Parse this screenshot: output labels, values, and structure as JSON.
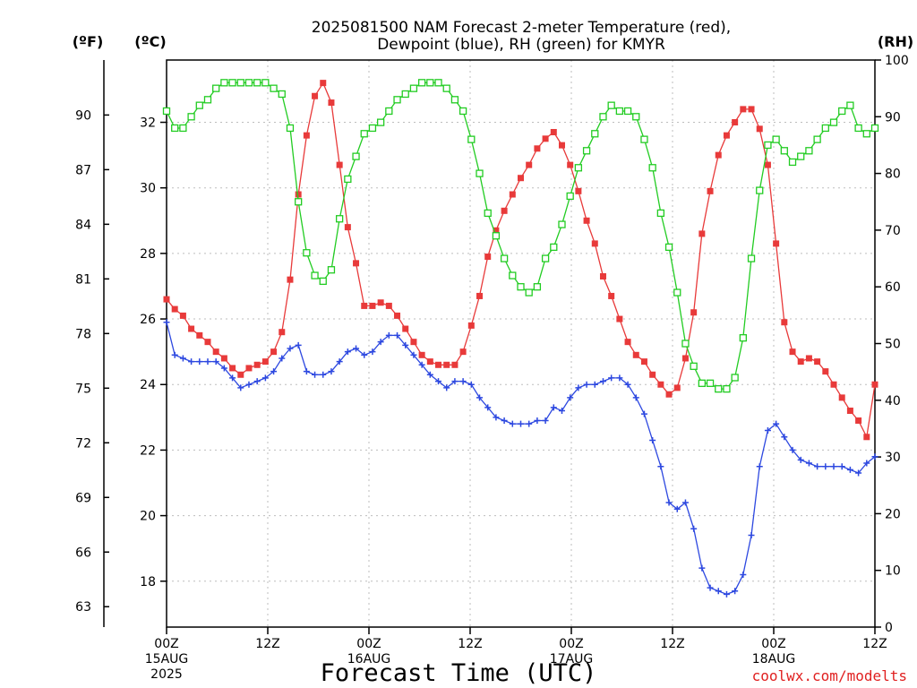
{
  "chart_data": {
    "type": "line",
    "title_line1": "2025081500 NAM Forecast 2-meter Temperature (red),",
    "title_line2": "Dewpoint (blue), RH (green) for KMYR",
    "left_unit_f": "(ºF)",
    "left_unit_c": "(ºC)",
    "right_unit": "(RH)",
    "xlabel": "Forecast Time (UTC)",
    "credit": "coolwx.com/modelts",
    "x_range_hours": [
      0,
      84
    ],
    "x_ticks": [
      {
        "h": 0,
        "l1": "00Z",
        "l2": "15AUG",
        "l3": "2025"
      },
      {
        "h": 12,
        "l1": "12Z",
        "l2": "",
        "l3": ""
      },
      {
        "h": 24,
        "l1": "00Z",
        "l2": "16AUG",
        "l3": ""
      },
      {
        "h": 36,
        "l1": "12Z",
        "l2": "",
        "l3": ""
      },
      {
        "h": 48,
        "l1": "00Z",
        "l2": "17AUG",
        "l3": ""
      },
      {
        "h": 60,
        "l1": "12Z",
        "l2": "",
        "l3": ""
      },
      {
        "h": 72,
        "l1": "00Z",
        "l2": "18AUG",
        "l3": ""
      },
      {
        "h": 84,
        "l1": "12Z",
        "l2": "",
        "l3": ""
      }
    ],
    "celsius_ticks": [
      18,
      20,
      22,
      24,
      26,
      28,
      30,
      32
    ],
    "fahrenheit_ticks": [
      63,
      66,
      69,
      72,
      75,
      78,
      81,
      84,
      87,
      90
    ],
    "rh_ticks": [
      0,
      10,
      20,
      30,
      40,
      50,
      60,
      70,
      80,
      90,
      100
    ],
    "ylim_c": [
      16.6,
      33.9
    ],
    "ylim_rh": [
      0,
      100
    ],
    "colors": {
      "temperature": "#e83a3a",
      "dewpoint": "#2d48e0",
      "rh": "#22cc22"
    },
    "series": [
      {
        "name": "Temperature",
        "units": "C",
        "values": [
          26.6,
          26.3,
          26.1,
          25.7,
          25.5,
          25.3,
          25.0,
          24.8,
          24.5,
          24.3,
          24.5,
          24.6,
          24.7,
          25.0,
          25.6,
          27.2,
          29.8,
          31.6,
          32.8,
          33.2,
          32.6,
          30.7,
          28.8,
          27.7,
          26.4,
          26.4,
          26.5,
          26.4,
          26.1,
          25.7,
          25.3,
          24.9,
          24.7,
          24.6,
          24.6,
          24.6,
          25.0,
          25.8,
          26.7,
          27.9,
          28.7,
          29.3,
          29.8,
          30.3,
          30.7,
          31.2,
          31.5,
          31.7,
          31.3,
          30.7,
          29.9,
          29.0,
          28.3,
          27.3,
          26.7,
          26.0,
          25.3,
          24.9,
          24.7,
          24.3,
          24.0,
          23.7,
          23.9,
          24.8,
          26.2,
          28.6,
          29.9,
          31.0,
          31.6,
          32.0,
          32.4,
          32.4,
          31.8,
          30.7,
          28.3,
          25.9,
          25.0,
          24.7,
          24.8,
          24.7,
          24.4,
          24.0,
          23.6,
          23.2,
          22.9,
          22.4,
          24.0
        ]
      },
      {
        "name": "Dewpoint",
        "units": "C",
        "values": [
          25.9,
          24.9,
          24.8,
          24.7,
          24.7,
          24.7,
          24.7,
          24.5,
          24.2,
          23.9,
          24.0,
          24.1,
          24.2,
          24.4,
          24.8,
          25.1,
          25.2,
          24.4,
          24.3,
          24.3,
          24.4,
          24.7,
          25.0,
          25.1,
          24.9,
          25.0,
          25.3,
          25.5,
          25.5,
          25.2,
          24.9,
          24.6,
          24.3,
          24.1,
          23.9,
          24.1,
          24.1,
          24.0,
          23.6,
          23.3,
          23.0,
          22.9,
          22.8,
          22.8,
          22.8,
          22.9,
          22.9,
          23.3,
          23.2,
          23.6,
          23.9,
          24.0,
          24.0,
          24.1,
          24.2,
          24.2,
          24.0,
          23.6,
          23.1,
          22.3,
          21.5,
          20.4,
          20.2,
          20.4,
          19.6,
          18.4,
          17.8,
          17.7,
          17.6,
          17.7,
          18.2,
          19.4,
          21.5,
          22.6,
          22.8,
          22.4,
          22.0,
          21.7,
          21.6,
          21.5,
          21.5,
          21.5,
          21.5,
          21.4,
          21.3,
          21.6,
          21.8
        ]
      },
      {
        "name": "RH",
        "units": "%",
        "values": [
          91,
          88,
          88,
          90,
          92,
          93,
          95,
          96,
          96,
          96,
          96,
          96,
          96,
          95,
          94,
          88,
          75,
          66,
          62,
          61,
          63,
          72,
          79,
          83,
          87,
          88,
          89,
          91,
          93,
          94,
          95,
          96,
          96,
          96,
          95,
          93,
          91,
          86,
          80,
          73,
          69,
          65,
          62,
          60,
          59,
          60,
          65,
          67,
          71,
          76,
          81,
          84,
          87,
          90,
          92,
          91,
          91,
          90,
          86,
          81,
          73,
          67,
          59,
          50,
          46,
          43,
          43,
          42,
          42,
          44,
          51,
          65,
          77,
          85,
          86,
          84,
          82,
          83,
          84,
          86,
          88,
          89,
          91,
          92,
          88,
          87,
          88
        ]
      }
    ]
  }
}
